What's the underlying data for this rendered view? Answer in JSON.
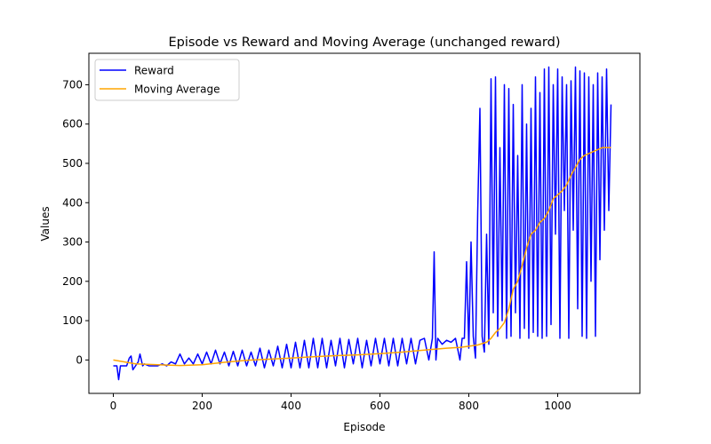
{
  "chart_data": {
    "type": "line",
    "title": "Episode vs Reward and Moving Average (unchanged reward)",
    "xlabel": "Episode",
    "ylabel": "Values",
    "xlim": [
      -55,
      1185
    ],
    "ylim": [
      -85,
      780
    ],
    "xticks": [
      0,
      200,
      400,
      600,
      800,
      1000
    ],
    "yticks": [
      0,
      100,
      200,
      300,
      400,
      500,
      600,
      700
    ],
    "grid": false,
    "legend_position": "top-left",
    "colors": {
      "reward": "#0000ff",
      "moving_average": "#ffa500"
    },
    "series": [
      {
        "name": "Reward",
        "color": "#0000ff",
        "x": [
          0,
          8,
          12,
          16,
          20,
          24,
          30,
          36,
          40,
          44,
          50,
          56,
          60,
          66,
          70,
          80,
          90,
          100,
          110,
          120,
          130,
          140,
          150,
          160,
          170,
          180,
          190,
          200,
          210,
          220,
          230,
          240,
          250,
          260,
          270,
          280,
          290,
          300,
          310,
          320,
          330,
          340,
          350,
          360,
          370,
          380,
          390,
          400,
          410,
          420,
          430,
          440,
          450,
          460,
          470,
          480,
          490,
          500,
          510,
          520,
          530,
          540,
          550,
          560,
          570,
          580,
          590,
          600,
          610,
          620,
          630,
          640,
          650,
          660,
          670,
          680,
          690,
          700,
          710,
          718,
          722,
          726,
          730,
          740,
          750,
          760,
          770,
          780,
          785,
          790,
          795,
          800,
          805,
          810,
          815,
          820,
          825,
          830,
          835,
          840,
          845,
          850,
          855,
          860,
          865,
          870,
          875,
          880,
          885,
          890,
          895,
          900,
          905,
          910,
          915,
          920,
          925,
          930,
          935,
          940,
          945,
          950,
          955,
          960,
          965,
          970,
          975,
          980,
          985,
          990,
          995,
          1000,
          1005,
          1010,
          1015,
          1020,
          1025,
          1030,
          1035,
          1040,
          1045,
          1050,
          1055,
          1060,
          1065,
          1070,
          1075,
          1080,
          1085,
          1090,
          1095,
          1100,
          1105,
          1110,
          1115,
          1120
        ],
        "y": [
          -15,
          -15,
          -50,
          -15,
          -15,
          -15,
          -15,
          5,
          10,
          -25,
          -15,
          -5,
          15,
          -15,
          -10,
          -15,
          -15,
          -15,
          -10,
          -15,
          -5,
          -10,
          15,
          -10,
          5,
          -10,
          15,
          -10,
          20,
          -10,
          25,
          -10,
          20,
          -15,
          22,
          -15,
          25,
          -15,
          20,
          -15,
          30,
          -20,
          25,
          -15,
          35,
          -20,
          40,
          -20,
          45,
          -20,
          50,
          -20,
          55,
          -20,
          55,
          -20,
          50,
          -15,
          55,
          -20,
          52,
          -10,
          55,
          -20,
          50,
          -15,
          55,
          -10,
          55,
          -15,
          55,
          -15,
          55,
          -10,
          55,
          -10,
          50,
          55,
          0,
          55,
          275,
          0,
          55,
          40,
          50,
          45,
          55,
          0,
          55,
          55,
          250,
          30,
          300,
          60,
          5,
          375,
          640,
          60,
          20,
          320,
          40,
          715,
          120,
          720,
          60,
          540,
          100,
          700,
          55,
          690,
          60,
          650,
          120,
          520,
          55,
          700,
          80,
          600,
          55,
          640,
          70,
          720,
          60,
          680,
          55,
          740,
          60,
          745,
          90,
          700,
          320,
          740,
          55,
          720,
          380,
          700,
          55,
          710,
          330,
          745,
          130,
          735,
          60,
          730,
          55,
          720,
          200,
          700,
          60,
          730,
          255,
          720,
          330,
          740,
          380,
          650
        ]
      },
      {
        "name": "Moving Average",
        "color": "#ffa500",
        "x": [
          0,
          50,
          100,
          150,
          200,
          250,
          300,
          350,
          400,
          450,
          500,
          550,
          600,
          650,
          700,
          750,
          780,
          800,
          820,
          840,
          850,
          860,
          870,
          880,
          890,
          900,
          910,
          920,
          930,
          940,
          950,
          960,
          970,
          980,
          990,
          1000,
          1010,
          1020,
          1030,
          1040,
          1050,
          1060,
          1070,
          1080,
          1090,
          1100,
          1110,
          1120
        ],
        "y": [
          0,
          -10,
          -12,
          -14,
          -12,
          -6,
          -1,
          2,
          5,
          8,
          11,
          13,
          16,
          20,
          25,
          30,
          32,
          35,
          38,
          45,
          55,
          70,
          80,
          95,
          130,
          180,
          200,
          240,
          285,
          320,
          330,
          350,
          360,
          380,
          410,
          420,
          430,
          445,
          470,
          490,
          510,
          520,
          525,
          530,
          535,
          540,
          540,
          540
        ]
      }
    ]
  }
}
